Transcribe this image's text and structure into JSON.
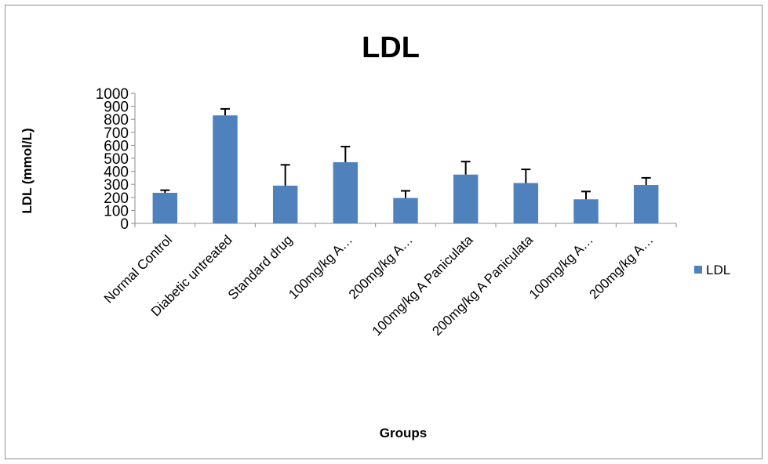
{
  "chart_data": {
    "type": "bar",
    "title": "LDL",
    "xlabel": "Groups",
    "ylabel": "LDL (mmol/L)",
    "ylim": [
      0,
      1000
    ],
    "yticks": [
      0,
      100,
      200,
      300,
      400,
      500,
      600,
      700,
      800,
      900,
      1000
    ],
    "categories": [
      "Normal Control",
      "Diabetic untreated",
      "Standard drug",
      "100mg/kg A…",
      "200mg/kg A…",
      "100mg/kg A Paniculata",
      "200mg/kg A Paniculata",
      "100mg/kg A…",
      "200mg/kg A…"
    ],
    "series": [
      {
        "name": "LDL",
        "color": "#4f81bd",
        "values": [
          235,
          830,
          290,
          470,
          195,
          375,
          310,
          185,
          295
        ],
        "errors": [
          20,
          50,
          160,
          120,
          55,
          100,
          105,
          60,
          55
        ]
      }
    ],
    "grid": false,
    "legend": {
      "position": "right",
      "entries": [
        "LDL"
      ]
    }
  }
}
